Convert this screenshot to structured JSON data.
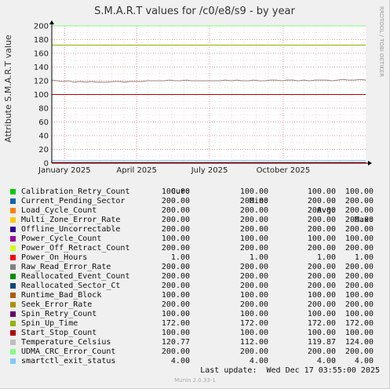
{
  "chart_data": {
    "type": "line",
    "title": "S.M.A.R.T values for /c0/e8/s9 - by year",
    "ylabel": "Attribute S.M.A.R.T value",
    "side_label": "RRDTOOL / TOBI OETIKER",
    "ylim": [
      0,
      200
    ],
    "yticks": [
      0,
      20,
      40,
      60,
      80,
      100,
      120,
      140,
      160,
      180,
      200
    ],
    "x_range_days": [
      0,
      392
    ],
    "x_ticks": [
      {
        "label": "January 2025",
        "day": 16
      },
      {
        "label": "April 2025",
        "day": 106
      },
      {
        "label": "July 2025",
        "day": 197
      },
      {
        "label": "October 2025",
        "day": 289
      }
    ],
    "columns": [
      "Cur:",
      "Min:",
      "Avg:",
      "Max:"
    ],
    "series": [
      {
        "name": "Calibration_Retry_Count",
        "color": "#00cc00",
        "cur": "100.00",
        "min": "100.00",
        "avg": "100.00",
        "max": "100.00",
        "line": 100
      },
      {
        "name": "Current_Pending_Sector",
        "color": "#0066b3",
        "cur": "200.00",
        "min": "200.00",
        "avg": "200.00",
        "max": "200.00",
        "line": 200
      },
      {
        "name": "Load_Cycle_Count",
        "color": "#ff8000",
        "cur": "200.00",
        "min": "200.00",
        "avg": "200.00",
        "max": "200.00",
        "line": 200
      },
      {
        "name": "Multi_Zone_Error_Rate",
        "color": "#ffcc00",
        "cur": "200.00",
        "min": "200.00",
        "avg": "200.00",
        "max": "200.00",
        "line": 200
      },
      {
        "name": "Offline_Uncorrectable",
        "color": "#330099",
        "cur": "200.00",
        "min": "200.00",
        "avg": "200.00",
        "max": "200.00",
        "line": 200
      },
      {
        "name": "Power_Cycle_Count",
        "color": "#990099",
        "cur": "100.00",
        "min": "100.00",
        "avg": "100.00",
        "max": "100.00",
        "line": 100
      },
      {
        "name": "Power_Off_Retract_Count",
        "color": "#ccff00",
        "cur": "200.00",
        "min": "200.00",
        "avg": "200.00",
        "max": "200.00",
        "line": 200
      },
      {
        "name": "Power_On_Hours",
        "color": "#ff0000",
        "cur": "1.00",
        "min": "1.00",
        "avg": "1.00",
        "max": "1.00",
        "line": 1
      },
      {
        "name": "Raw_Read_Error_Rate",
        "color": "#808080",
        "cur": "200.00",
        "min": "200.00",
        "avg": "200.00",
        "max": "200.00",
        "line": 200
      },
      {
        "name": "Reallocated_Event_Count",
        "color": "#008f00",
        "cur": "200.00",
        "min": "200.00",
        "avg": "200.00",
        "max": "200.00",
        "line": 200
      },
      {
        "name": "Reallocated_Sector_Ct",
        "color": "#00487d",
        "cur": "200.00",
        "min": "200.00",
        "avg": "200.00",
        "max": "200.00",
        "line": 200
      },
      {
        "name": "Runtime_Bad_Block",
        "color": "#b35a00",
        "cur": "100.00",
        "min": "100.00",
        "avg": "100.00",
        "max": "100.00",
        "line": 100
      },
      {
        "name": "Seek_Error_Rate",
        "color": "#b38f00",
        "cur": "200.00",
        "min": "200.00",
        "avg": "200.00",
        "max": "200.00",
        "line": 200
      },
      {
        "name": "Spin_Retry_Count",
        "color": "#6b006b",
        "cur": "100.00",
        "min": "100.00",
        "avg": "100.00",
        "max": "100.00",
        "line": 100
      },
      {
        "name": "Spin_Up_Time",
        "color": "#8fb300",
        "cur": "172.00",
        "min": "172.00",
        "avg": "172.00",
        "max": "172.00",
        "line": 172
      },
      {
        "name": "Start_Stop_Count",
        "color": "#b30000",
        "cur": "100.00",
        "min": "100.00",
        "avg": "100.00",
        "max": "100.00",
        "line": 100
      },
      {
        "name": "Temperature_Celsius",
        "color": "#bebebe",
        "cur": "120.77",
        "min": "112.00",
        "avg": "119.87",
        "max": "124.00",
        "line": "temperature"
      },
      {
        "name": "UDMA_CRC_Error_Count",
        "color": "#80ff80",
        "cur": "200.00",
        "min": "200.00",
        "avg": "200.00",
        "max": "200.00",
        "line": 200
      },
      {
        "name": "smartctl_exit_status",
        "color": "#80c9ff",
        "cur": "4.00",
        "min": "4.00",
        "avg": "4.00",
        "max": "4.00",
        "line": 4
      }
    ],
    "temperature_trace": [
      [
        0,
        121
      ],
      [
        7,
        120
      ],
      [
        14,
        119
      ],
      [
        21,
        120
      ],
      [
        28,
        118
      ],
      [
        35,
        119
      ],
      [
        42,
        118
      ],
      [
        49,
        119
      ],
      [
        56,
        118
      ],
      [
        63,
        118
      ],
      [
        70,
        118
      ],
      [
        77,
        119
      ],
      [
        84,
        119
      ],
      [
        91,
        118
      ],
      [
        98,
        119
      ],
      [
        105,
        119
      ],
      [
        112,
        119
      ],
      [
        119,
        120
      ],
      [
        126,
        120
      ],
      [
        133,
        120
      ],
      [
        140,
        120
      ],
      [
        147,
        121
      ],
      [
        154,
        120
      ],
      [
        161,
        120
      ],
      [
        168,
        121
      ],
      [
        175,
        120
      ],
      [
        182,
        120
      ],
      [
        189,
        120
      ],
      [
        196,
        120
      ],
      [
        203,
        120
      ],
      [
        210,
        120
      ],
      [
        217,
        121
      ],
      [
        224,
        120
      ],
      [
        231,
        121
      ],
      [
        238,
        120
      ],
      [
        245,
        120
      ],
      [
        252,
        121
      ],
      [
        259,
        120
      ],
      [
        266,
        120
      ],
      [
        273,
        121
      ],
      [
        280,
        121
      ],
      [
        287,
        120
      ],
      [
        294,
        121
      ],
      [
        301,
        121
      ],
      [
        308,
        120
      ],
      [
        315,
        121
      ],
      [
        322,
        120
      ],
      [
        329,
        121
      ],
      [
        336,
        121
      ],
      [
        343,
        121
      ],
      [
        350,
        120
      ],
      [
        357,
        121
      ],
      [
        364,
        122
      ],
      [
        371,
        121
      ],
      [
        378,
        121
      ],
      [
        385,
        122
      ],
      [
        392,
        121
      ]
    ]
  },
  "footer": {
    "last_update": "Last update:  Wed Dec 17 03:55:00 2025",
    "munin_version": "Munin 2.0.33-1"
  }
}
